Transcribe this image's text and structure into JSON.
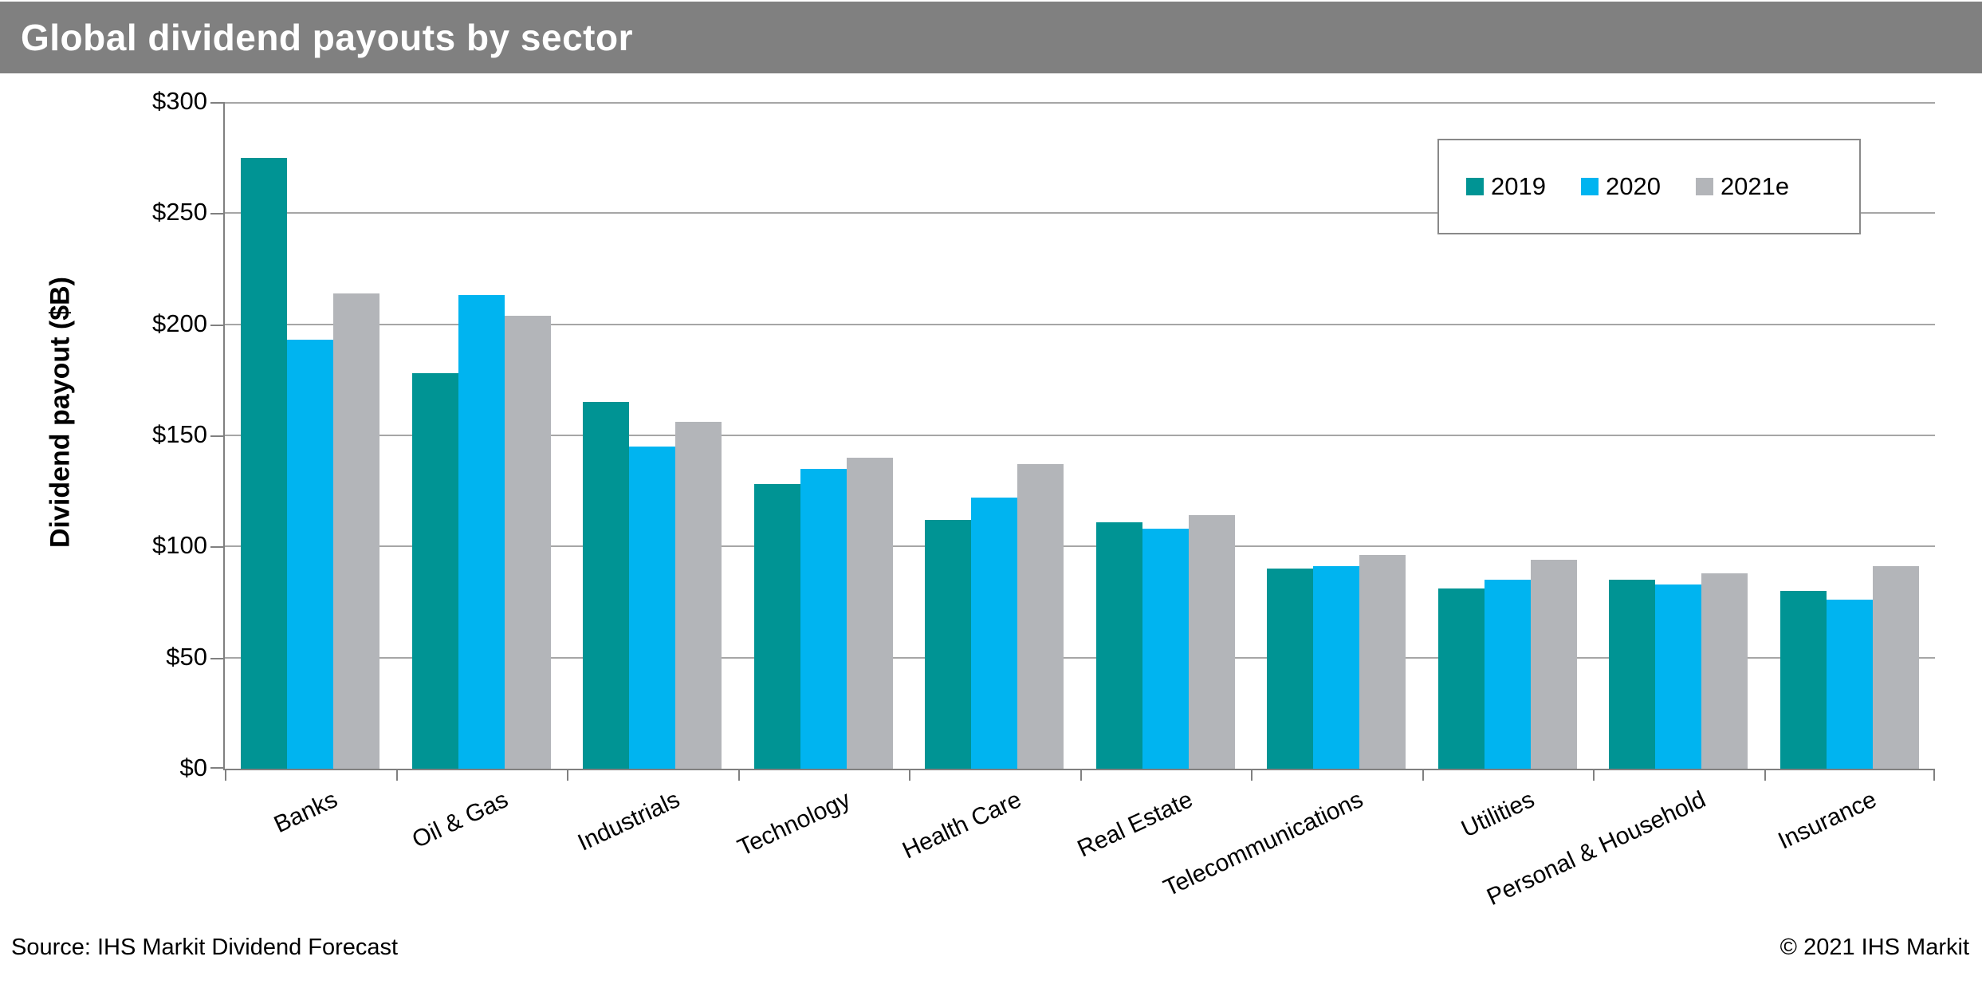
{
  "title_bar": {
    "title": "Global dividend payouts by sector",
    "bg_color": "#808080",
    "text_color": "#FFFFFF"
  },
  "chart_data": {
    "type": "bar",
    "title": "Global dividend payouts by sector",
    "xlabel": "",
    "ylabel": "Dividend payout ($B)",
    "ylim": [
      0,
      300
    ],
    "ytick_step": 50,
    "ytick_labels": [
      "$0",
      "$50",
      "$100",
      "$150",
      "$200",
      "$250",
      "$300"
    ],
    "grid": true,
    "legend_position": "top-right",
    "gridline_color": "#A6A6A6",
    "axis_color": "#808080",
    "categories": [
      "Banks",
      "Oil & Gas",
      "Industrials",
      "Technology",
      "Health Care",
      "Real Estate",
      "Telecommunications",
      "Utilities",
      "Personal & Household",
      "Insurance"
    ],
    "series": [
      {
        "name": "2019",
        "color": "#009494",
        "values": [
          275,
          178,
          165,
          128,
          112,
          111,
          90,
          81,
          85,
          80
        ]
      },
      {
        "name": "2020",
        "color": "#00B4F0",
        "values": [
          193,
          213,
          145,
          135,
          122,
          108,
          91,
          85,
          83,
          76
        ]
      },
      {
        "name": "2021e",
        "color": "#B3B5B9",
        "values": [
          214,
          204,
          156,
          140,
          137,
          114,
          96,
          94,
          88,
          91
        ]
      }
    ]
  },
  "footer": {
    "source": "Source: IHS Markit Dividend Forecast",
    "copyright": "© 2021 IHS Markit"
  }
}
